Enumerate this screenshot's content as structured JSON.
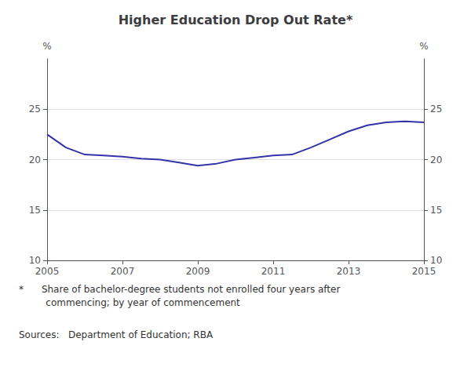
{
  "chart_data": {
    "type": "line",
    "title": "Higher Education Drop Out Rate*",
    "x": [
      2005,
      2005.5,
      2006,
      2006.5,
      2007,
      2007.5,
      2008,
      2008.5,
      2009,
      2009.5,
      2010,
      2010.5,
      2011,
      2011.5,
      2012,
      2012.5,
      2013,
      2013.5,
      2014,
      2014.5,
      2015
    ],
    "values": [
      22.5,
      21.2,
      20.5,
      20.4,
      20.3,
      20.1,
      20.0,
      19.7,
      19.4,
      19.6,
      20.0,
      20.2,
      20.4,
      20.5,
      21.2,
      22.0,
      22.8,
      23.4,
      23.7,
      23.8,
      23.7
    ],
    "color": "#3333aa",
    "xlim": [
      2005,
      2015
    ],
    "xticks": [
      2005,
      2007,
      2009,
      2011,
      2013,
      2015
    ],
    "ylim": [
      10,
      30
    ],
    "yticks": [
      10,
      15,
      20,
      25
    ],
    "y2lim": [
      10,
      30
    ],
    "y2ticks": [
      10,
      15,
      20,
      25
    ],
    "ylabel": "%",
    "y2label": "%",
    "grid": true,
    "annotations": [
      "*      Share of bachelor-degree students not enrolled four years after\n         commencing; by year of commencement",
      "Sources:   Department of Education; RBA"
    ]
  }
}
